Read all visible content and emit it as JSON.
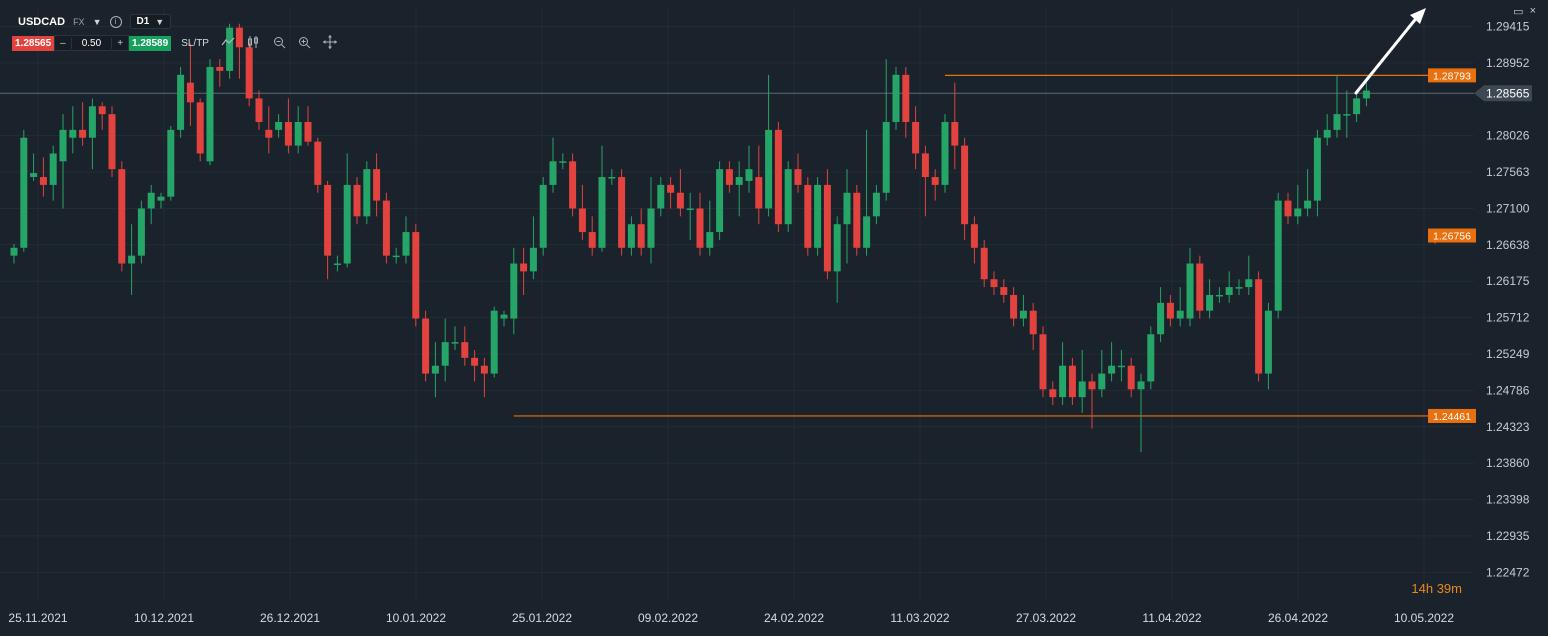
{
  "toolbar": {
    "symbol": "USDCAD",
    "market": "FX",
    "timeframe": "D1",
    "bid": "1.28565",
    "quantity": "0.50",
    "ask": "1.28589",
    "minus": "–",
    "plus": "+",
    "sltp_label": "SL/TP",
    "icons": [
      "line-chart-icon",
      "candles-icon",
      "zoom-out-icon",
      "zoom-in-icon",
      "crosshair-icon"
    ]
  },
  "window": {
    "maximize_icon": "▭",
    "close_icon": "×"
  },
  "countdown": {
    "hours": "14",
    "h": "h",
    "minutes": "39",
    "m": "m"
  },
  "colors": {
    "background": "#1a222b",
    "bull": "#25a567",
    "bear": "#e2433e",
    "level": "#e8700f",
    "price_line": "#5d6b78",
    "grid": "#232c36"
  },
  "chart_data": {
    "type": "candlestick",
    "symbol": "USDCAD",
    "timeframe": "D1",
    "ylim": [
      1.2212,
      1.2965
    ],
    "y_ticks": [
      "1.29415",
      "1.28952",
      "1.28026",
      "1.27563",
      "1.27100",
      "1.26638",
      "1.26175",
      "1.25712",
      "1.25249",
      "1.24786",
      "1.24323",
      "1.23860",
      "1.23398",
      "1.22935",
      "1.22472"
    ],
    "x_ticks": [
      "25.11.2021",
      "10.12.2021",
      "26.12.2021",
      "10.01.2022",
      "25.01.2022",
      "09.02.2022",
      "24.02.2022",
      "11.03.2022",
      "27.03.2022",
      "11.04.2022",
      "26.04.2022",
      "10.05.2022"
    ],
    "current_price": "1.28565",
    "levels": [
      {
        "label": "1.28793",
        "value": 1.28793,
        "from_index": 95
      },
      {
        "label": "1.26756",
        "value": 1.26756,
        "from_index": 145
      },
      {
        "label": "1.24461",
        "value": 1.24461,
        "from_index": 51
      }
    ],
    "ohlc": [
      [
        1.265,
        1.266,
        1.264,
        1.2665
      ],
      [
        1.266,
        1.28,
        1.2655,
        1.281
      ],
      [
        1.275,
        1.2755,
        1.2745,
        1.278
      ],
      [
        1.275,
        1.274,
        1.2725,
        1.2775
      ],
      [
        1.274,
        1.278,
        1.272,
        1.279
      ],
      [
        1.277,
        1.281,
        1.271,
        1.283
      ],
      [
        1.28,
        1.281,
        1.278,
        1.284
      ],
      [
        1.281,
        1.28,
        1.279,
        1.2845
      ],
      [
        1.28,
        1.284,
        1.276,
        1.285
      ],
      [
        1.284,
        1.283,
        1.281,
        1.2845
      ],
      [
        1.283,
        1.276,
        1.275,
        1.284
      ],
      [
        1.276,
        1.264,
        1.263,
        1.277
      ],
      [
        1.264,
        1.265,
        1.26,
        1.269
      ],
      [
        1.265,
        1.271,
        1.264,
        1.272
      ],
      [
        1.271,
        1.273,
        1.269,
        1.274
      ],
      [
        1.272,
        1.2725,
        1.271,
        1.273
      ],
      [
        1.2725,
        1.281,
        1.272,
        1.2815
      ],
      [
        1.281,
        1.288,
        1.28,
        1.289
      ],
      [
        1.287,
        1.2845,
        1.2815,
        1.292
      ],
      [
        1.2845,
        1.278,
        1.277,
        1.285
      ],
      [
        1.277,
        1.289,
        1.2765,
        1.29
      ],
      [
        1.289,
        1.2885,
        1.2865,
        1.29
      ],
      [
        1.2885,
        1.294,
        1.2875,
        1.2945
      ],
      [
        1.294,
        1.2915,
        1.2875,
        1.2945
      ],
      [
        1.2915,
        1.285,
        1.284,
        1.292
      ],
      [
        1.285,
        1.282,
        1.281,
        1.286
      ],
      [
        1.281,
        1.28,
        1.278,
        1.284
      ],
      [
        1.281,
        1.282,
        1.28,
        1.283
      ],
      [
        1.282,
        1.279,
        1.278,
        1.285
      ],
      [
        1.279,
        1.282,
        1.278,
        1.284
      ],
      [
        1.282,
        1.2795,
        1.279,
        1.284
      ],
      [
        1.2795,
        1.274,
        1.273,
        1.28
      ],
      [
        1.274,
        1.265,
        1.262,
        1.2745
      ],
      [
        1.264,
        1.264,
        1.263,
        1.265
      ],
      [
        1.264,
        1.274,
        1.2635,
        1.278
      ],
      [
        1.274,
        1.27,
        1.269,
        1.275
      ],
      [
        1.27,
        1.276,
        1.269,
        1.277
      ],
      [
        1.276,
        1.272,
        1.27,
        1.278
      ],
      [
        1.272,
        1.265,
        1.264,
        1.273
      ],
      [
        1.265,
        1.265,
        1.264,
        1.266
      ],
      [
        1.265,
        1.268,
        1.264,
        1.27
      ],
      [
        1.268,
        1.257,
        1.256,
        1.269
      ],
      [
        1.257,
        1.25,
        1.249,
        1.258
      ],
      [
        1.25,
        1.251,
        1.247,
        1.254
      ],
      [
        1.251,
        1.254,
        1.249,
        1.257
      ],
      [
        1.254,
        1.254,
        1.253,
        1.256
      ],
      [
        1.254,
        1.252,
        1.251,
        1.256
      ],
      [
        1.252,
        1.251,
        1.249,
        1.253
      ],
      [
        1.251,
        1.25,
        1.247,
        1.252
      ],
      [
        1.25,
        1.258,
        1.2495,
        1.2585
      ],
      [
        1.257,
        1.2575,
        1.256,
        1.258
      ],
      [
        1.257,
        1.264,
        1.255,
        1.266
      ],
      [
        1.264,
        1.263,
        1.26,
        1.266
      ],
      [
        1.263,
        1.266,
        1.262,
        1.27
      ],
      [
        1.266,
        1.274,
        1.265,
        1.275
      ],
      [
        1.274,
        1.277,
        1.273,
        1.28
      ],
      [
        1.277,
        1.277,
        1.276,
        1.278
      ],
      [
        1.277,
        1.271,
        1.27,
        1.278
      ],
      [
        1.271,
        1.268,
        1.267,
        1.274
      ],
      [
        1.268,
        1.266,
        1.265,
        1.27
      ],
      [
        1.266,
        1.275,
        1.2655,
        1.279
      ],
      [
        1.275,
        1.275,
        1.274,
        1.276
      ],
      [
        1.275,
        1.266,
        1.265,
        1.276
      ],
      [
        1.266,
        1.269,
        1.265,
        1.27
      ],
      [
        1.269,
        1.266,
        1.265,
        1.271
      ],
      [
        1.266,
        1.271,
        1.264,
        1.275
      ],
      [
        1.271,
        1.274,
        1.27,
        1.275
      ],
      [
        1.274,
        1.273,
        1.271,
        1.275
      ],
      [
        1.273,
        1.271,
        1.27,
        1.276
      ],
      [
        1.271,
        1.271,
        1.267,
        1.273
      ],
      [
        1.271,
        1.266,
        1.265,
        1.273
      ],
      [
        1.266,
        1.268,
        1.265,
        1.272
      ],
      [
        1.268,
        1.276,
        1.267,
        1.277
      ],
      [
        1.276,
        1.274,
        1.273,
        1.277
      ],
      [
        1.274,
        1.275,
        1.27,
        1.277
      ],
      [
        1.2745,
        1.276,
        1.273,
        1.279
      ],
      [
        1.275,
        1.271,
        1.269,
        1.279
      ],
      [
        1.271,
        1.281,
        1.27,
        1.288
      ],
      [
        1.281,
        1.269,
        1.268,
        1.282
      ],
      [
        1.269,
        1.276,
        1.268,
        1.277
      ],
      [
        1.276,
        1.274,
        1.273,
        1.278
      ],
      [
        1.274,
        1.266,
        1.265,
        1.275
      ],
      [
        1.266,
        1.274,
        1.265,
        1.275
      ],
      [
        1.274,
        1.263,
        1.262,
        1.276
      ],
      [
        1.263,
        1.269,
        1.259,
        1.27
      ],
      [
        1.269,
        1.273,
        1.264,
        1.276
      ],
      [
        1.273,
        1.266,
        1.265,
        1.274
      ],
      [
        1.266,
        1.27,
        1.265,
        1.281
      ],
      [
        1.27,
        1.273,
        1.269,
        1.274
      ],
      [
        1.273,
        1.282,
        1.272,
        1.29
      ],
      [
        1.282,
        1.288,
        1.281,
        1.289
      ],
      [
        1.288,
        1.282,
        1.28,
        1.289
      ],
      [
        1.282,
        1.278,
        1.276,
        1.284
      ],
      [
        1.278,
        1.275,
        1.27,
        1.279
      ],
      [
        1.275,
        1.274,
        1.272,
        1.276
      ],
      [
        1.274,
        1.282,
        1.273,
        1.283
      ],
      [
        1.282,
        1.279,
        1.276,
        1.287
      ],
      [
        1.279,
        1.269,
        1.267,
        1.28
      ],
      [
        1.269,
        1.266,
        1.264,
        1.27
      ],
      [
        1.266,
        1.262,
        1.261,
        1.267
      ],
      [
        1.262,
        1.261,
        1.26,
        1.263
      ],
      [
        1.261,
        1.26,
        1.259,
        1.262
      ],
      [
        1.26,
        1.257,
        1.256,
        1.261
      ],
      [
        1.257,
        1.258,
        1.256,
        1.26
      ],
      [
        1.258,
        1.255,
        1.253,
        1.259
      ],
      [
        1.255,
        1.248,
        1.247,
        1.256
      ],
      [
        1.248,
        1.247,
        1.246,
        1.249
      ],
      [
        1.247,
        1.251,
        1.246,
        1.254
      ],
      [
        1.251,
        1.247,
        1.246,
        1.252
      ],
      [
        1.247,
        1.249,
        1.245,
        1.253
      ],
      [
        1.249,
        1.248,
        1.243,
        1.25
      ],
      [
        1.248,
        1.25,
        1.247,
        1.253
      ],
      [
        1.25,
        1.251,
        1.249,
        1.254
      ],
      [
        1.251,
        1.251,
        1.249,
        1.253
      ],
      [
        1.251,
        1.248,
        1.247,
        1.252
      ],
      [
        1.248,
        1.249,
        1.24,
        1.25
      ],
      [
        1.249,
        1.255,
        1.248,
        1.256
      ],
      [
        1.255,
        1.259,
        1.254,
        1.261
      ],
      [
        1.259,
        1.257,
        1.256,
        1.26
      ],
      [
        1.257,
        1.258,
        1.256,
        1.261
      ],
      [
        1.257,
        1.264,
        1.256,
        1.266
      ],
      [
        1.264,
        1.258,
        1.257,
        1.265
      ],
      [
        1.258,
        1.26,
        1.257,
        1.262
      ],
      [
        1.26,
        1.26,
        1.259,
        1.261
      ],
      [
        1.26,
        1.261,
        1.259,
        1.263
      ],
      [
        1.261,
        1.261,
        1.26,
        1.262
      ],
      [
        1.261,
        1.262,
        1.26,
        1.265
      ],
      [
        1.262,
        1.25,
        1.249,
        1.263
      ],
      [
        1.25,
        1.258,
        1.248,
        1.259
      ],
      [
        1.258,
        1.272,
        1.257,
        1.273
      ],
      [
        1.272,
        1.27,
        1.269,
        1.273
      ],
      [
        1.27,
        1.271,
        1.269,
        1.274
      ],
      [
        1.271,
        1.272,
        1.27,
        1.276
      ],
      [
        1.272,
        1.28,
        1.27,
        1.281
      ],
      [
        1.28,
        1.281,
        1.279,
        1.283
      ],
      [
        1.281,
        1.283,
        1.28,
        1.288
      ],
      [
        1.283,
        1.283,
        1.28,
        1.286
      ],
      [
        1.283,
        1.285,
        1.282,
        1.286
      ],
      [
        1.285,
        1.286,
        1.284,
        1.287
      ]
    ]
  }
}
